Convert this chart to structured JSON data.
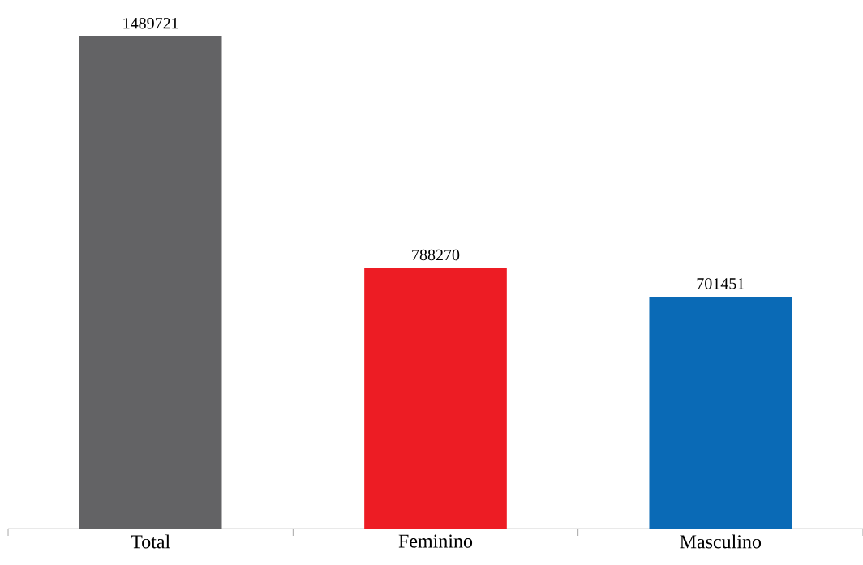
{
  "chart_data": {
    "type": "bar",
    "categories": [
      "Total",
      "Feminino",
      "Masculino"
    ],
    "values": [
      1489721,
      788270,
      701451
    ],
    "colors": [
      "#636365",
      "#ed1c24",
      "#0a6ab6"
    ],
    "data_labels": true
  }
}
